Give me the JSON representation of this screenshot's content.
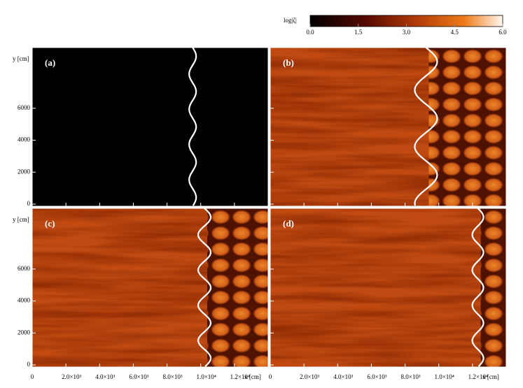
{
  "colorbar": {
    "label": "log|ζ|",
    "range": [
      0,
      6
    ],
    "ticks": [
      {
        "value": 0,
        "label": "0.0"
      },
      1.5,
      {
        "value": 3,
        "label": "3.0"
      },
      4.5,
      {
        "value": 6,
        "label": "6.0"
      }
    ]
  },
  "panels": [
    {
      "label": "(a)"
    },
    {
      "label": "(b)"
    },
    {
      "label": "(c)"
    },
    {
      "label": "(d)"
    }
  ],
  "axes": {
    "ylabel": "y [cm]",
    "xlabel": "x [cm]",
    "ylim": [
      0,
      9800
    ],
    "yticks": [
      0,
      2000,
      4000,
      6000
    ],
    "xlim": [
      0,
      14000
    ],
    "xticks": [
      0,
      {
        "value": 2000,
        "label": "2.0×10³"
      },
      {
        "value": 4000,
        "label": "4.0×10³"
      },
      {
        "value": 6000,
        "label": "6.0×10³"
      },
      {
        "value": 8000,
        "label": "8.0×10³"
      },
      {
        "value": 10000,
        "label": "1.0×10⁴"
      },
      {
        "value": 12000,
        "label": "1.2×10⁴"
      }
    ]
  }
}
